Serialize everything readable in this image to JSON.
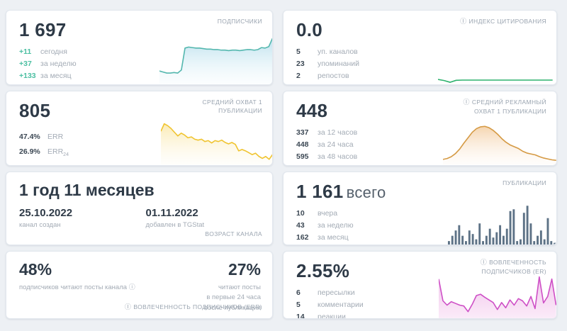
{
  "icons": {
    "info": "ⓘ"
  },
  "cards": {
    "subscribers": {
      "title": "ПОДПИСЧИКИ",
      "value": "1 697",
      "stats": [
        {
          "value": "+11",
          "label": "сегодня"
        },
        {
          "value": "+37",
          "label": "за неделю"
        },
        {
          "value": "+133",
          "label": "за месяц"
        }
      ],
      "chart": {
        "type": "area",
        "color": "#53b7ae",
        "fill_top": "rgba(137,201,224,0.55)",
        "fill_bottom": "rgba(230,245,250,0.15)",
        "values": [
          0.26,
          0.24,
          0.22,
          0.22,
          0.23,
          0.22,
          0.28,
          0.71,
          0.73,
          0.72,
          0.71,
          0.71,
          0.7,
          0.69,
          0.69,
          0.68,
          0.68,
          0.67,
          0.67,
          0.66,
          0.67,
          0.67,
          0.66,
          0.67,
          0.68,
          0.68,
          0.67,
          0.68,
          0.72,
          0.71,
          0.74,
          0.9
        ]
      }
    },
    "citation_index": {
      "title": "ИНДЕКС ЦИТИРОВАНИЯ",
      "value": "0.0",
      "stats": [
        {
          "value": "5",
          "label": "уп. каналов"
        },
        {
          "value": "23",
          "label": "упоминаний"
        },
        {
          "value": "2",
          "label": "репостов"
        }
      ],
      "chart": {
        "type": "line",
        "color": "#2eb26e",
        "values": [
          0.32,
          0.22,
          0.06,
          0.24,
          0.26,
          0.26,
          0.26,
          0.26,
          0.26,
          0.26,
          0.26,
          0.26,
          0.26,
          0.26,
          0.26,
          0.26,
          0.26,
          0.26,
          0.26,
          0.26
        ]
      }
    },
    "avg_reach": {
      "title": "СРЕДНИЙ ОХВАТ 1 ПУБЛИКАЦИИ",
      "value": "805",
      "stats": [
        {
          "value": "47.4%",
          "label": "ERR",
          "label_sub": ""
        },
        {
          "value": "26.9%",
          "label": "ERR",
          "label_sub": "24"
        }
      ],
      "chart": {
        "type": "area",
        "color": "#f0c430",
        "fill_top": "rgba(245,210,90,0.45)",
        "fill_bottom": "rgba(253,246,225,0.12)",
        "values": [
          0.72,
          0.88,
          0.84,
          0.78,
          0.7,
          0.62,
          0.68,
          0.64,
          0.58,
          0.6,
          0.55,
          0.53,
          0.55,
          0.5,
          0.52,
          0.47,
          0.52,
          0.5,
          0.53,
          0.48,
          0.45,
          0.48,
          0.44,
          0.3,
          0.33,
          0.3,
          0.26,
          0.22,
          0.25,
          0.18,
          0.14,
          0.18,
          0.12,
          0.22
        ]
      }
    },
    "avg_ad_reach": {
      "title": "СРЕДНИЙ РЕКЛАМНЫЙ ОХВАТ 1 ПУБЛИКАЦИИ",
      "value": "448",
      "stats": [
        {
          "value": "337",
          "label": "за 12 часов"
        },
        {
          "value": "448",
          "label": "за 24 часа"
        },
        {
          "value": "595",
          "label": "за 48 часов"
        }
      ],
      "chart": {
        "type": "area",
        "color": "#d59a44",
        "fill_top": "rgba(235,170,95,0.5)",
        "fill_bottom": "rgba(250,235,220,0.1)",
        "values": [
          0.12,
          0.14,
          0.18,
          0.25,
          0.35,
          0.48,
          0.6,
          0.72,
          0.8,
          0.84,
          0.85,
          0.82,
          0.76,
          0.68,
          0.58,
          0.5,
          0.44,
          0.4,
          0.36,
          0.3,
          0.26,
          0.24,
          0.22,
          0.18,
          0.15,
          0.13,
          0.11,
          0.1
        ]
      }
    },
    "channel_age": {
      "title": "ВОЗРАСТ КАНАЛА",
      "value": "1 год 11 месяцев",
      "created": {
        "date": "25.10.2022",
        "label": "канал создан"
      },
      "added": {
        "date": "01.11.2022",
        "label": "добавлен в TGStat"
      }
    },
    "publications": {
      "title": "ПУБЛИКАЦИИ",
      "value": "1 161",
      "suffix": "всего",
      "stats": [
        {
          "value": "10",
          "label": "вчера"
        },
        {
          "value": "43",
          "label": "за неделю"
        },
        {
          "value": "162",
          "label": "за месяц"
        }
      ],
      "chart": {
        "type": "bars",
        "color": "#5d7286",
        "values": [
          2,
          5,
          8,
          11,
          5,
          2,
          8,
          6,
          3,
          12,
          2,
          5,
          9,
          4,
          7,
          11,
          5,
          9,
          19,
          20,
          2,
          3,
          18,
          22,
          12,
          2,
          5,
          8,
          3,
          15,
          2,
          1
        ]
      }
    },
    "engagement_err": {
      "title": "ВОВЛЕЧЕННОСТЬ ПОДПИСЧИКОВ (ERR)",
      "left": {
        "value": "48%",
        "label": "подписчиков читают посты канала"
      },
      "right": {
        "value": "27%",
        "label": "читают посты\nв первые 24 часа\nпосле публикации"
      }
    },
    "engagement_er": {
      "title": "ВОВЛЕЧЕННОСТЬ ПОДПИСЧИКОВ (ER)",
      "value": "2.55%",
      "stats": [
        {
          "value": "6",
          "label": "пересылки"
        },
        {
          "value": "5",
          "label": "комментарии"
        },
        {
          "value": "14",
          "label": "реакции"
        }
      ],
      "chart": {
        "type": "area",
        "color": "#ce4fc6",
        "fill_top": "rgba(228,140,218,0.5)",
        "fill_bottom": "rgba(246,210,240,0.45)",
        "values": [
          0.9,
          0.4,
          0.3,
          0.38,
          0.34,
          0.3,
          0.28,
          0.15,
          0.32,
          0.52,
          0.55,
          0.48,
          0.42,
          0.36,
          0.2,
          0.36,
          0.24,
          0.42,
          0.3,
          0.45,
          0.4,
          0.28,
          0.5,
          0.22,
          0.95,
          0.35,
          0.5,
          0.9,
          0.3
        ]
      }
    }
  }
}
